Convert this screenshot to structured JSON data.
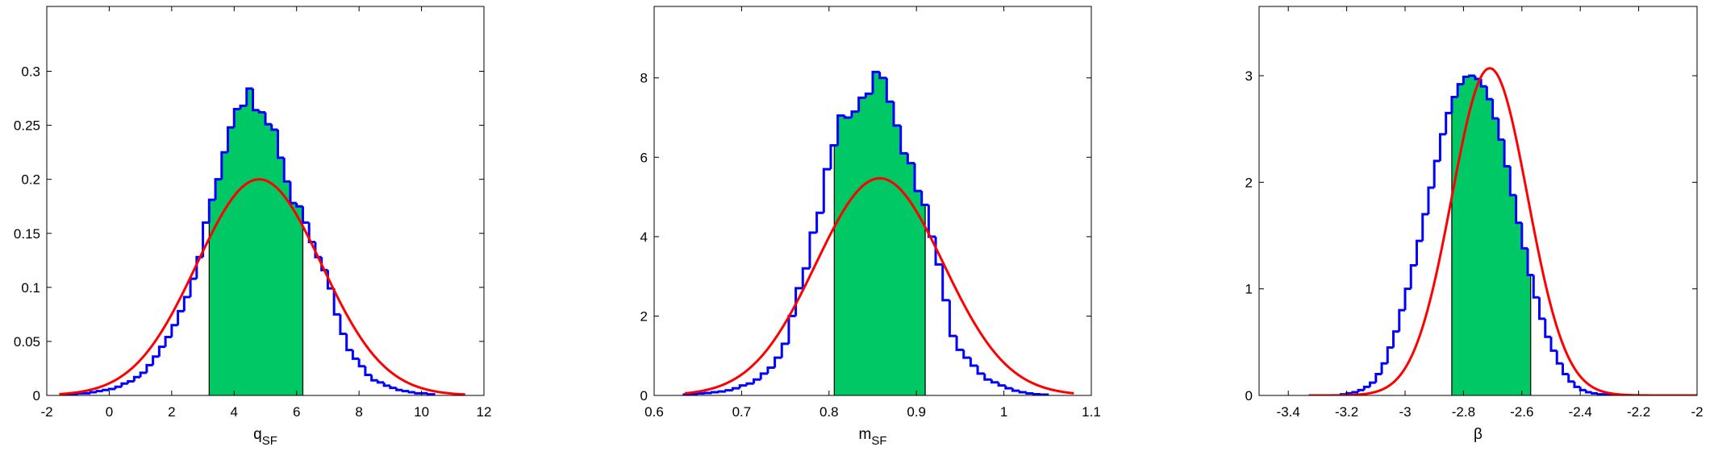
{
  "colors": {
    "hist_line": "#0000ff",
    "hist_fill": "#00c864",
    "fit_line": "#ff0000",
    "axes": "#000000"
  },
  "chart_data": [
    {
      "type": "histogram",
      "xlabel": "q",
      "xlabel_sub": "SF",
      "ylabel": "",
      "xlim": [
        -2,
        12
      ],
      "ylim": [
        0,
        0.36
      ],
      "xticks": [
        -2,
        0,
        2,
        4,
        6,
        8,
        10,
        12
      ],
      "yticks": [
        0,
        0.05,
        0.1,
        0.15,
        0.2,
        0.25,
        0.3
      ],
      "xtick_labels": [
        "-2",
        "0",
        "2",
        "4",
        "6",
        "8",
        "10",
        "12"
      ],
      "ytick_labels": [
        "0",
        "0.05",
        "0.1",
        "0.15",
        "0.2",
        "0.25",
        "0.3"
      ],
      "shaded_interval": [
        3.2,
        6.2
      ],
      "hist": {
        "edges": [
          -1.6,
          -1.4,
          -1.2,
          -1.0,
          -0.8,
          -0.6,
          -0.4,
          -0.2,
          0.0,
          0.2,
          0.4,
          0.6,
          0.8,
          1.0,
          1.2,
          1.4,
          1.6,
          1.8,
          2.0,
          2.2,
          2.4,
          2.6,
          2.8,
          3.0,
          3.2,
          3.4,
          3.6,
          3.8,
          4.0,
          4.2,
          4.4,
          4.6,
          4.8,
          5.0,
          5.2,
          5.4,
          5.6,
          5.8,
          6.0,
          6.2,
          6.4,
          6.6,
          6.8,
          7.0,
          7.2,
          7.4,
          7.6,
          7.8,
          8.0,
          8.2,
          8.4,
          8.6,
          8.8,
          9.0,
          9.2,
          9.4,
          9.6,
          9.8,
          10.0,
          10.2,
          10.4
        ],
        "counts": [
          0,
          0.001,
          0.001,
          0.002,
          0.002,
          0.003,
          0.004,
          0.005,
          0.006,
          0.008,
          0.011,
          0.013,
          0.017,
          0.021,
          0.028,
          0.036,
          0.045,
          0.054,
          0.065,
          0.078,
          0.091,
          0.108,
          0.128,
          0.16,
          0.181,
          0.2,
          0.225,
          0.248,
          0.265,
          0.268,
          0.284,
          0.264,
          0.262,
          0.251,
          0.246,
          0.22,
          0.198,
          0.178,
          0.175,
          0.16,
          0.142,
          0.128,
          0.116,
          0.099,
          0.075,
          0.057,
          0.042,
          0.034,
          0.027,
          0.019,
          0.014,
          0.012,
          0.009,
          0.007,
          0.005,
          0.004,
          0.003,
          0.002,
          0.002,
          0.001
        ]
      },
      "fit": {
        "kind": "gaussian",
        "mean": 4.8,
        "sd": 2.0,
        "peak": 0.2,
        "x_range": [
          -1.6,
          11.4
        ]
      }
    },
    {
      "type": "histogram",
      "xlabel": "m",
      "xlabel_sub": "SF",
      "ylabel": "",
      "xlim": [
        0.6,
        1.1
      ],
      "ylim": [
        0,
        9.8
      ],
      "xticks": [
        0.6,
        0.7,
        0.8,
        0.9,
        1.0,
        1.1
      ],
      "yticks": [
        0,
        2,
        4,
        6,
        8
      ],
      "xtick_labels": [
        "0.6",
        "0.7",
        "0.8",
        "0.9",
        "1",
        "1.1"
      ],
      "ytick_labels": [
        "0",
        "2",
        "4",
        "6",
        "8"
      ],
      "shaded_interval": [
        0.806,
        0.91
      ],
      "hist": {
        "edges": [
          0.634,
          0.642,
          0.65,
          0.658,
          0.666,
          0.674,
          0.682,
          0.69,
          0.698,
          0.706,
          0.714,
          0.722,
          0.73,
          0.738,
          0.746,
          0.754,
          0.762,
          0.77,
          0.778,
          0.786,
          0.794,
          0.802,
          0.81,
          0.818,
          0.826,
          0.834,
          0.842,
          0.85,
          0.858,
          0.866,
          0.874,
          0.882,
          0.89,
          0.898,
          0.906,
          0.914,
          0.922,
          0.93,
          0.938,
          0.946,
          0.954,
          0.962,
          0.97,
          0.978,
          0.986,
          0.994,
          1.002,
          1.01,
          1.018,
          1.026,
          1.034,
          1.042,
          1.05
        ],
        "counts": [
          0.02,
          0.03,
          0.05,
          0.06,
          0.08,
          0.1,
          0.13,
          0.18,
          0.25,
          0.3,
          0.4,
          0.55,
          0.7,
          0.95,
          1.3,
          2.0,
          2.7,
          3.2,
          4.1,
          4.6,
          5.7,
          6.3,
          7.05,
          7.0,
          7.15,
          7.5,
          7.6,
          8.15,
          8.0,
          7.4,
          6.8,
          6.1,
          5.85,
          5.15,
          4.8,
          4.0,
          3.3,
          2.4,
          1.5,
          1.15,
          0.95,
          0.75,
          0.55,
          0.4,
          0.33,
          0.25,
          0.18,
          0.12,
          0.08,
          0.05,
          0.03,
          0.02
        ]
      },
      "fit": {
        "kind": "gaussian",
        "mean": 0.858,
        "sd": 0.073,
        "peak": 5.47,
        "x_range": [
          0.635,
          1.08
        ]
      }
    },
    {
      "type": "histogram",
      "xlabel": "β",
      "xlabel_sub": "",
      "ylabel": "",
      "xlim": [
        -3.5,
        -2.0
      ],
      "ylim": [
        0,
        3.65
      ],
      "xticks": [
        -3.4,
        -3.2,
        -3.0,
        -2.8,
        -2.6,
        -2.4,
        -2.2,
        -2.0
      ],
      "yticks": [
        0,
        1,
        2,
        3
      ],
      "xtick_labels": [
        "-3.4",
        "-3.2",
        "-3",
        "-2.8",
        "-2.6",
        "-2.4",
        "-2.2",
        "-2"
      ],
      "ytick_labels": [
        "0",
        "1",
        "2",
        "3"
      ],
      "shaded_interval": [
        -2.84,
        -2.57
      ],
      "hist": {
        "edges": [
          -3.22,
          -3.2,
          -3.18,
          -3.16,
          -3.14,
          -3.12,
          -3.1,
          -3.08,
          -3.06,
          -3.04,
          -3.02,
          -3.0,
          -2.98,
          -2.96,
          -2.94,
          -2.92,
          -2.9,
          -2.88,
          -2.86,
          -2.84,
          -2.82,
          -2.8,
          -2.78,
          -2.76,
          -2.74,
          -2.72,
          -2.7,
          -2.68,
          -2.66,
          -2.64,
          -2.62,
          -2.6,
          -2.58,
          -2.56,
          -2.54,
          -2.52,
          -2.5,
          -2.48,
          -2.46,
          -2.44,
          -2.42,
          -2.4,
          -2.38,
          -2.36,
          -2.34,
          -2.32,
          -2.3,
          -2.28,
          -2.26,
          -2.24
        ],
        "counts": [
          0.01,
          0.02,
          0.03,
          0.05,
          0.08,
          0.12,
          0.2,
          0.3,
          0.45,
          0.6,
          0.8,
          1.0,
          1.22,
          1.45,
          1.7,
          1.95,
          2.2,
          2.45,
          2.65,
          2.8,
          2.92,
          2.99,
          3.0,
          2.97,
          2.9,
          2.78,
          2.6,
          2.4,
          2.15,
          1.88,
          1.62,
          1.38,
          1.13,
          0.92,
          0.72,
          0.55,
          0.42,
          0.3,
          0.2,
          0.13,
          0.08,
          0.05,
          0.03,
          0.02,
          0.01,
          0.01,
          0.005,
          0.003,
          0.001
        ]
      },
      "fit": {
        "kind": "gaussian",
        "mean": -2.71,
        "sd": 0.13,
        "peak": 3.07,
        "x_range": [
          -3.33,
          -2.0
        ]
      }
    }
  ]
}
